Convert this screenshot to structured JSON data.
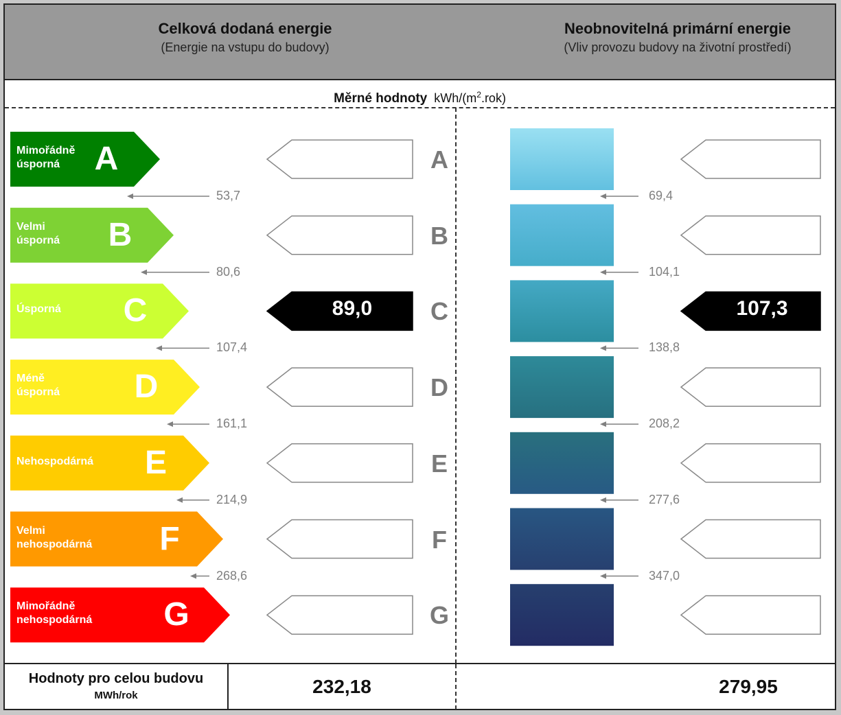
{
  "header": {
    "left_title": "Celková dodaná energie",
    "left_subtitle": "(Energie na vstupu do budovy)",
    "right_title": "Neobnovitelná primární energie",
    "right_subtitle": "(Vliv provozu budovy na životní prostředí)"
  },
  "subheader": {
    "label": "Měrné hodnoty",
    "unit_prefix": "kWh/(m",
    "unit_sup": "2",
    "unit_suffix": ".rok)"
  },
  "classes": [
    {
      "letter": "A",
      "label_line1": "Mimořádně",
      "label_line2": "úsporná",
      "color": "#008000"
    },
    {
      "letter": "B",
      "label_line1": "Velmi",
      "label_line2": "úsporná",
      "color": "#7ed234"
    },
    {
      "letter": "C",
      "label_line1": "Úsporná",
      "label_line2": "",
      "color": "#ccff33"
    },
    {
      "letter": "D",
      "label_line1": "Méně",
      "label_line2": "úsporná",
      "color": "#ffee22"
    },
    {
      "letter": "E",
      "label_line1": "Nehospodárná",
      "label_line2": "",
      "color": "#ffcc00"
    },
    {
      "letter": "F",
      "label_line1": "Velmi",
      "label_line2": "nehospodárná",
      "color": "#ff9900"
    },
    {
      "letter": "G",
      "label_line1": "Mimořádně",
      "label_line2": "nehospodárná",
      "color": "#ff0000"
    }
  ],
  "left_thresholds": [
    "53,7",
    "80,6",
    "107,4",
    "161,1",
    "214,9",
    "268,6"
  ],
  "right_thresholds": [
    "69,4",
    "104,1",
    "138,8",
    "208,2",
    "277,6",
    "347,0"
  ],
  "right_colors": [
    [
      "#9ae0f2",
      "#62c0e0"
    ],
    [
      "#62bee0",
      "#46adca"
    ],
    [
      "#44a9c4",
      "#2c8ea0"
    ],
    [
      "#2e8a99",
      "#277080"
    ],
    [
      "#29707e",
      "#285a84"
    ],
    [
      "#285682",
      "#274070"
    ],
    [
      "#263f6e",
      "#232c64"
    ]
  ],
  "left_value": {
    "class_index": 2,
    "text": "89,0"
  },
  "right_value": {
    "class_index": 2,
    "text": "107,3"
  },
  "footer": {
    "label_line1": "Hodnoty pro celou budovu",
    "label_line2": "MWh/rok",
    "left_total": "232,18",
    "right_total": "279,95"
  }
}
